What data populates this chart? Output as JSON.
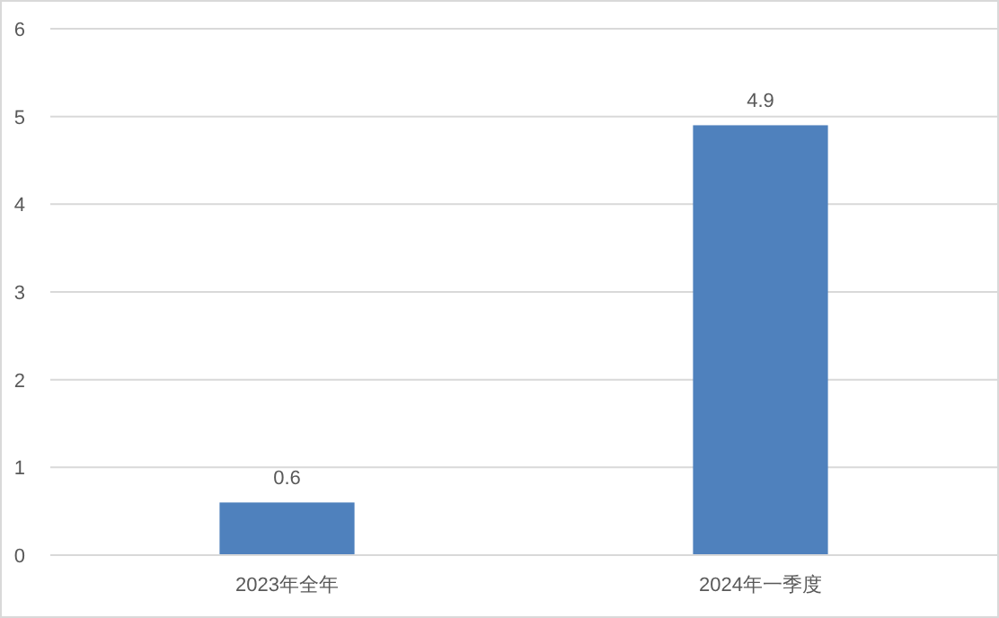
{
  "chart_data": {
    "type": "bar",
    "categories": [
      "2023年全年",
      "2024年一季度"
    ],
    "values": [
      0.6,
      4.9
    ],
    "color": "#4f81bd",
    "ylim": [
      0,
      6
    ],
    "yticks": [
      0,
      1,
      2,
      3,
      4,
      5,
      6
    ],
    "grid": "y",
    "data_labels": true
  }
}
